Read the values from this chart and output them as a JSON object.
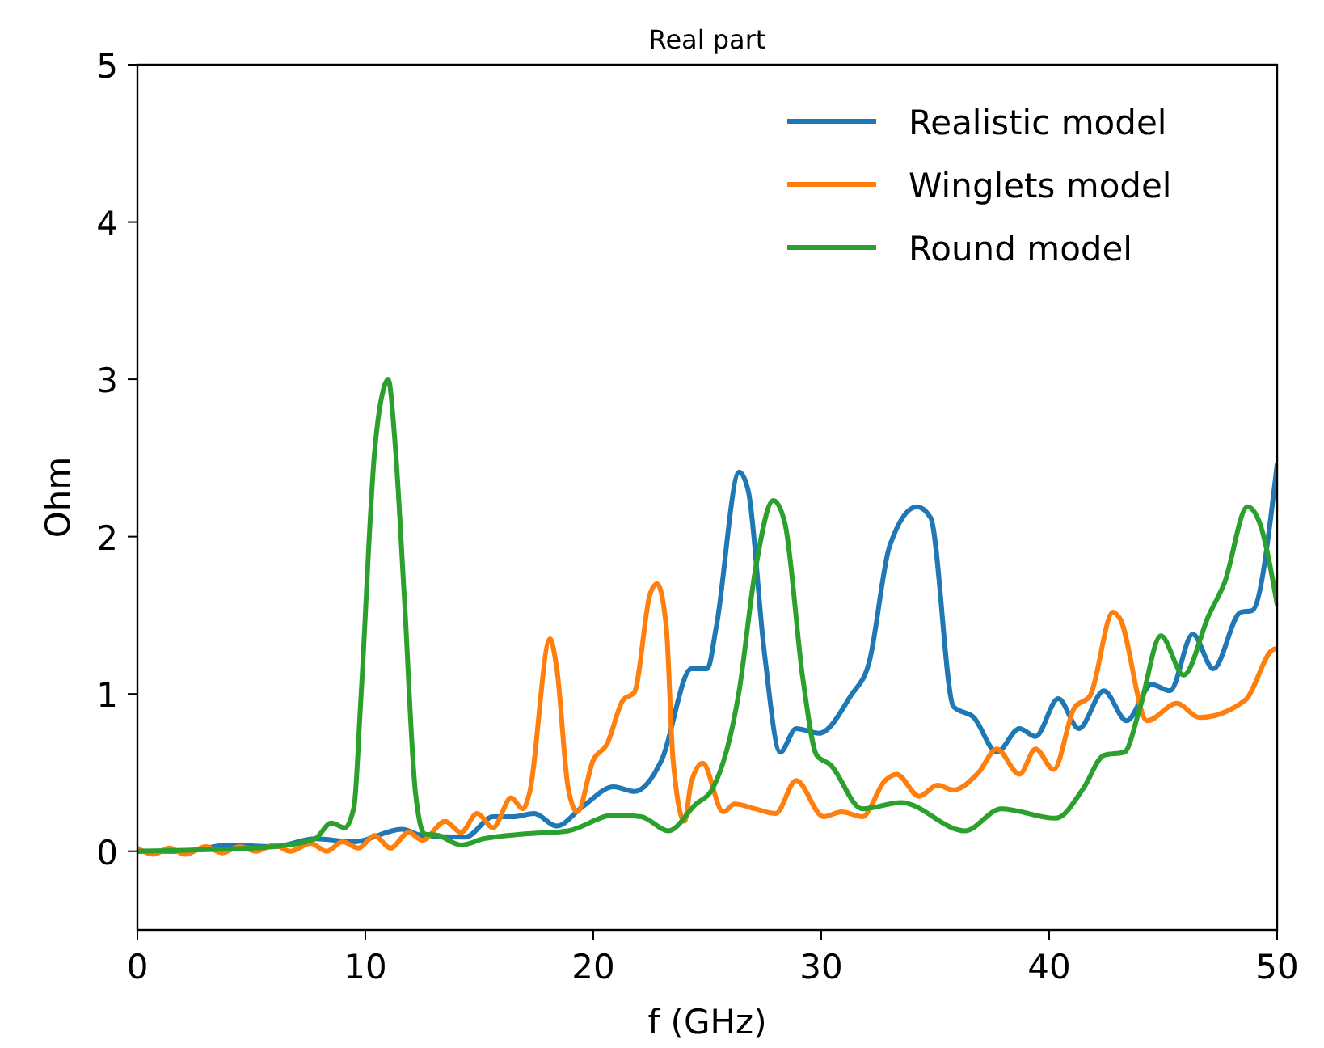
{
  "chart_data": {
    "type": "line",
    "title": "Real part",
    "xlabel": "f (GHz)",
    "ylabel": "Ohm",
    "xlim": [
      0,
      50
    ],
    "ylim": [
      -0.5,
      5
    ],
    "xticks": [
      0,
      10,
      20,
      30,
      40,
      50
    ],
    "yticks": [
      0,
      1,
      2,
      3,
      4,
      5
    ],
    "grid": false,
    "legend": "top right",
    "line_style": "solid",
    "marker": "none",
    "series": [
      {
        "name": "Realistic model",
        "color": "#1f77b4",
        "x": [
          0,
          2,
          4,
          6,
          7.8,
          9.5,
          11.6,
          12.5,
          14.4,
          15.6,
          16.5,
          17.4,
          18.4,
          19.5,
          20.9,
          21.8,
          23.0,
          24.3,
          25.0,
          25.4,
          26.4,
          26.8,
          27.5,
          28.2,
          28.9,
          29.9,
          31.3,
          32.1,
          33.0,
          34.2,
          34.8,
          35.8,
          36.7,
          37.7,
          38.7,
          39.4,
          40.4,
          41.3,
          42.4,
          43.4,
          44.5,
          45.3,
          46.3,
          47.2,
          48.4,
          48.9,
          50
        ],
        "values": [
          0,
          0,
          0.04,
          0.03,
          0.08,
          0.06,
          0.14,
          0.1,
          0.09,
          0.22,
          0.22,
          0.24,
          0.16,
          0.28,
          0.41,
          0.38,
          0.58,
          1.16,
          1.16,
          1.43,
          2.41,
          2.29,
          1.27,
          0.63,
          0.78,
          0.75,
          0.99,
          1.2,
          1.94,
          2.19,
          2.12,
          0.92,
          0.85,
          0.63,
          0.78,
          0.73,
          0.97,
          0.78,
          1.02,
          0.83,
          1.06,
          1.02,
          1.38,
          1.16,
          1.52,
          1.53,
          2.46
        ]
      },
      {
        "name": "Winglets model",
        "color": "#ff7f0e",
        "x": [
          0,
          0.7,
          1.4,
          2.1,
          3.0,
          3.7,
          4.5,
          5.2,
          6.0,
          6.7,
          7.6,
          8.3,
          9.0,
          9.7,
          10.4,
          11.1,
          11.9,
          12.5,
          13.5,
          14.2,
          14.9,
          15.6,
          16.4,
          16.9,
          17.2,
          18.1,
          18.4,
          18.9,
          19.3,
          20.0,
          20.6,
          21.3,
          21.8,
          22.5,
          22.8,
          23.2,
          23.5,
          24.0,
          24.3,
          24.8,
          25.7,
          26.2,
          27.1,
          28.0,
          28.9,
          30.1,
          30.9,
          31.8,
          32.8,
          33.3,
          34.3,
          35.1,
          35.8,
          36.9,
          37.7,
          38.7,
          39.4,
          40.2,
          41.1,
          41.8,
          42.8,
          43.1,
          44.3,
          45.6,
          46.6,
          48.6,
          49.8,
          50
        ],
        "values": [
          0.02,
          -0.02,
          0.02,
          -0.02,
          0.03,
          -0.01,
          0.03,
          0,
          0.04,
          0,
          0.05,
          0,
          0.06,
          0.02,
          0.1,
          0.02,
          0.12,
          0.07,
          0.19,
          0.12,
          0.24,
          0.15,
          0.34,
          0.27,
          0.37,
          1.35,
          1.16,
          0.4,
          0.25,
          0.58,
          0.68,
          0.96,
          1.01,
          1.64,
          1.7,
          1.43,
          0.58,
          0.19,
          0.44,
          0.56,
          0.25,
          0.3,
          0.27,
          0.24,
          0.45,
          0.22,
          0.25,
          0.22,
          0.45,
          0.49,
          0.35,
          0.42,
          0.39,
          0.5,
          0.65,
          0.49,
          0.65,
          0.52,
          0.91,
          0.99,
          1.52,
          1.48,
          0.83,
          0.94,
          0.85,
          0.96,
          1.28,
          1.29
        ]
      },
      {
        "name": "Round model",
        "color": "#2ca02c",
        "x": [
          0,
          3,
          6,
          7.8,
          8.5,
          9.1,
          9.5,
          9.8,
          10.4,
          10.8,
          11.0,
          11.3,
          11.7,
          12.2,
          12.6,
          13.2,
          14.2,
          15.2,
          17.0,
          18.9,
          20.9,
          22.1,
          23.3,
          24.5,
          25.2,
          26.4,
          27.1,
          27.9,
          28.4,
          29.2,
          29.8,
          30.4,
          31.8,
          33.5,
          36.3,
          37.9,
          40.3,
          41.5,
          42.4,
          43.3,
          44.0,
          44.9,
          45.9,
          47.0,
          47.7,
          48.7,
          49.2,
          50
        ],
        "values": [
          0,
          0.01,
          0.03,
          0.08,
          0.18,
          0.15,
          0.28,
          0.96,
          2.53,
          2.94,
          3.0,
          2.6,
          1.64,
          0.37,
          0.11,
          0.1,
          0.04,
          0.08,
          0.11,
          0.13,
          0.23,
          0.22,
          0.13,
          0.3,
          0.39,
          1.02,
          1.78,
          2.23,
          2.09,
          1.09,
          0.61,
          0.55,
          0.27,
          0.31,
          0.13,
          0.27,
          0.21,
          0.4,
          0.61,
          0.63,
          0.92,
          1.37,
          1.12,
          1.5,
          1.71,
          2.19,
          2.1,
          1.57
        ]
      }
    ]
  }
}
